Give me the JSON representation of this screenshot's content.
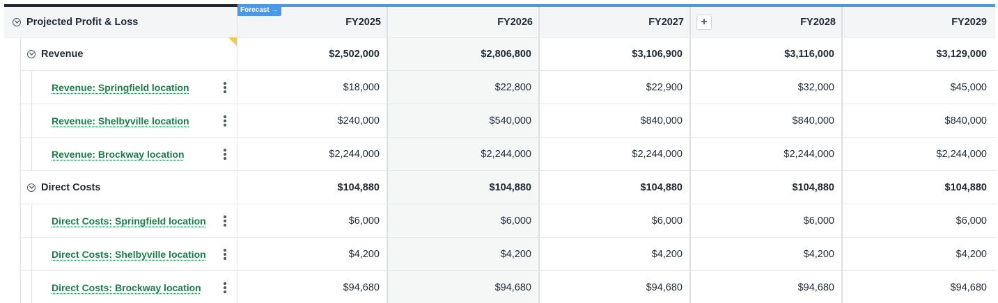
{
  "forecast_tag": {
    "label": "Forecast",
    "arrow": "→"
  },
  "table": {
    "title": "Projected Profit & Loss",
    "columns": [
      "FY2025",
      "FY2026",
      "FY2027",
      "FY2028",
      "FY2029"
    ],
    "add_column_symbol": "+",
    "rows": [
      {
        "type": "category",
        "label": "Revenue",
        "values": [
          "$2,502,000",
          "$2,806,800",
          "$3,106,900",
          "$3,116,000",
          "$3,129,000"
        ]
      },
      {
        "type": "item",
        "label": "Revenue: Springfield location",
        "values": [
          "$18,000",
          "$22,800",
          "$22,900",
          "$32,000",
          "$45,000"
        ]
      },
      {
        "type": "item",
        "label": "Revenue: Shelbyville location",
        "values": [
          "$240,000",
          "$540,000",
          "$840,000",
          "$840,000",
          "$840,000"
        ]
      },
      {
        "type": "item",
        "label": "Revenue: Brockway location",
        "values": [
          "$2,244,000",
          "$2,244,000",
          "$2,244,000",
          "$2,244,000",
          "$2,244,000"
        ]
      },
      {
        "type": "category",
        "label": "Direct Costs",
        "values": [
          "$104,880",
          "$104,880",
          "$104,880",
          "$104,880",
          "$104,880"
        ]
      },
      {
        "type": "item",
        "label": "Direct Costs: Springfield location",
        "values": [
          "$6,000",
          "$6,000",
          "$6,000",
          "$6,000",
          "$6,000"
        ]
      },
      {
        "type": "item",
        "label": "Direct Costs: Shelbyville location",
        "values": [
          "$4,200",
          "$4,200",
          "$4,200",
          "$4,200",
          "$4,200"
        ]
      },
      {
        "type": "item",
        "label": "Direct Costs: Brockway location",
        "values": [
          "$94,680",
          "$94,680",
          "$94,680",
          "$94,680",
          "$94,680"
        ]
      }
    ]
  },
  "colors": {
    "accent_blue": "#4a98e8",
    "link_green": "#1c7d48",
    "flag_yellow": "#f2c94c",
    "header_bg": "#f3f5f6"
  }
}
